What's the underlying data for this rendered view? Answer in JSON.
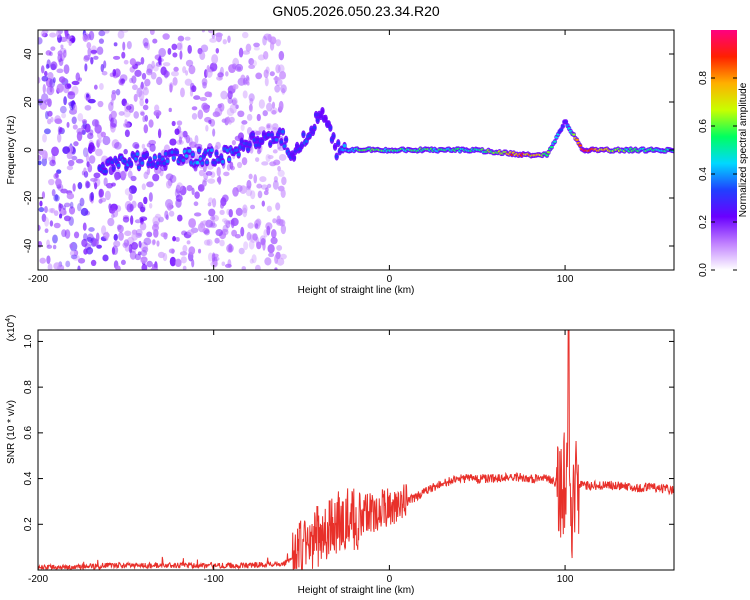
{
  "figure_title": "GN05.2026.050.23.34.R20",
  "chart_data": [
    {
      "type": "heatmap",
      "title": "GN05.2026.050.23.34.R20",
      "xlabel": "Height of straight line (km)",
      "ylabel": "Frequency (Hz)",
      "xlim": [
        -200,
        162
      ],
      "ylim": [
        -50,
        50
      ],
      "x_ticks": [
        -200,
        -100,
        0,
        100
      ],
      "y_ticks": [
        -40,
        -20,
        0,
        20,
        40
      ],
      "colorbar": {
        "label": "Normalized spectral amplitude",
        "range": [
          0,
          1
        ],
        "ticks": [
          "0.0",
          "0.2",
          "0.4",
          "0.6",
          "0.8"
        ],
        "colormap": [
          "#ffffff",
          "#c080ff",
          "#6a00ff",
          "#2040ff",
          "#00d8ff",
          "#00ff60",
          "#c8ff00",
          "#ffb000",
          "#ff2000",
          "#ff0080"
        ]
      },
      "noise_region_x": [
        -200,
        -60
      ],
      "ridge": [
        {
          "x": -165,
          "y": -8,
          "amp": 0.3
        },
        {
          "x": -150,
          "y": -5,
          "amp": 0.35
        },
        {
          "x": -130,
          "y": -4,
          "amp": 0.35
        },
        {
          "x": -110,
          "y": -3,
          "amp": 0.4
        },
        {
          "x": -90,
          "y": -2,
          "amp": 0.35
        },
        {
          "x": -75,
          "y": 5,
          "amp": 0.3
        },
        {
          "x": -60,
          "y": 5,
          "amp": 0.35
        },
        {
          "x": -55,
          "y": -2,
          "amp": 0.3
        },
        {
          "x": -45,
          "y": 8,
          "amp": 0.35
        },
        {
          "x": -38,
          "y": 16,
          "amp": 0.25
        },
        {
          "x": -30,
          "y": 0,
          "amp": 0.3
        },
        {
          "x": -15,
          "y": 0,
          "amp": 0.6
        },
        {
          "x": 0,
          "y": 0,
          "amp": 0.55
        },
        {
          "x": 20,
          "y": 0,
          "amp": 0.55
        },
        {
          "x": 50,
          "y": 0,
          "amp": 0.5
        },
        {
          "x": 75,
          "y": -2,
          "amp": 0.9
        },
        {
          "x": 90,
          "y": -2,
          "amp": 0.6
        },
        {
          "x": 100,
          "y": 12,
          "amp": 0.3
        },
        {
          "x": 110,
          "y": 0,
          "amp": 0.95
        },
        {
          "x": 135,
          "y": 0,
          "amp": 0.55
        },
        {
          "x": 162,
          "y": 0,
          "amp": 0.5
        }
      ]
    },
    {
      "type": "line",
      "xlabel": "Height of straight line (km)",
      "ylabel": "SNR (10 * v/v)",
      "multiplier": "(x10",
      "multiplier_exp": "4",
      "multiplier_close": ")",
      "xlim": [
        -200,
        162
      ],
      "ylim": [
        0,
        1.05
      ],
      "x_ticks": [
        -200,
        -100,
        0,
        100
      ],
      "y_ticks": [
        "0.2",
        "0.4",
        "0.6",
        "0.8",
        "1.0"
      ],
      "series": [
        {
          "color": "#e8302a",
          "x": [
            -200,
            -180,
            -160,
            -140,
            -120,
            -100,
            -80,
            -70,
            -60,
            -55,
            -50,
            -45,
            -40,
            -35,
            -30,
            -25,
            -20,
            -15,
            -10,
            -5,
            0,
            10,
            20,
            30,
            40,
            50,
            60,
            70,
            80,
            90,
            95,
            98,
            100,
            102,
            104,
            106,
            108,
            110,
            120,
            130,
            140,
            150,
            162
          ],
          "y": [
            0.01,
            0.01,
            0.02,
            0.02,
            0.02,
            0.02,
            0.02,
            0.025,
            0.03,
            0.05,
            0.1,
            0.12,
            0.15,
            0.18,
            0.2,
            0.22,
            0.22,
            0.24,
            0.25,
            0.26,
            0.28,
            0.3,
            0.34,
            0.38,
            0.4,
            0.4,
            0.4,
            0.41,
            0.4,
            0.4,
            0.38,
            0.34,
            0.4,
            0.55,
            0.2,
            0.35,
            0.38,
            0.37,
            0.37,
            0.37,
            0.36,
            0.36,
            0.35
          ]
        }
      ],
      "peak": {
        "x": 102,
        "y": 1.05
      }
    }
  ]
}
